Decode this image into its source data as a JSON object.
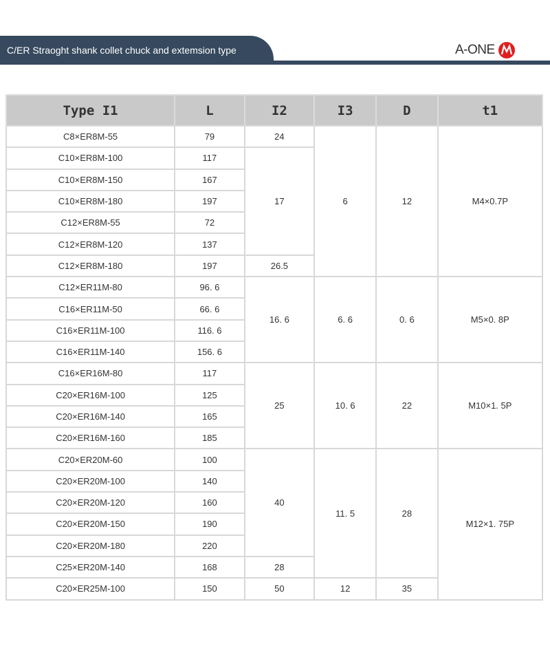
{
  "header": {
    "title": "C/ER Straoght shank collet chuck and extemsion type",
    "logo_text": "A-ONE",
    "brand_color": "#e02020",
    "band_color": "#36495e"
  },
  "columns": [
    "Type I1",
    "L",
    "I2",
    "I3",
    "D",
    "t1"
  ],
  "groups": [
    {
      "rows": [
        [
          "C8×ER8M-55",
          "79"
        ],
        [
          "C10×ER8M-100",
          "117"
        ],
        [
          "C10×ER8M-150",
          "167"
        ],
        [
          "C10×ER8M-180",
          "197"
        ],
        [
          "C12×ER8M-55",
          "72"
        ],
        [
          "C12×ER8M-120",
          "137"
        ],
        [
          "C12×ER8M-180",
          "197"
        ]
      ],
      "I2": [
        [
          "24",
          1
        ],
        [
          "17",
          5
        ],
        [
          "26.5",
          1
        ]
      ],
      "I3": [
        [
          "6",
          7
        ]
      ],
      "D": [
        [
          "12",
          7
        ]
      ],
      "t1": [
        [
          "M4×0.7P",
          7
        ]
      ]
    },
    {
      "rows": [
        [
          "C12×ER11M-80",
          "96. 6"
        ],
        [
          "C16×ER11M-50",
          "66. 6"
        ],
        [
          "C16×ER11M-100",
          "116. 6"
        ],
        [
          "C16×ER11M-140",
          "156. 6"
        ]
      ],
      "I2": [
        [
          "16. 6",
          4
        ]
      ],
      "I3": [
        [
          "6. 6",
          4
        ]
      ],
      "D": [
        [
          "0. 6",
          4
        ]
      ],
      "t1": [
        [
          "M5×0. 8P",
          4
        ]
      ]
    },
    {
      "rows": [
        [
          "C16×ER16M-80",
          "117"
        ],
        [
          "C20×ER16M-100",
          "125"
        ],
        [
          "C20×ER16M-140",
          "165"
        ],
        [
          "C20×ER16M-160",
          "185"
        ]
      ],
      "I2": [
        [
          "25",
          4
        ]
      ],
      "I3": [
        [
          "10. 6",
          4
        ]
      ],
      "D": [
        [
          "22",
          4
        ]
      ],
      "t1": [
        [
          "M10×1. 5P",
          4
        ]
      ]
    },
    {
      "rows": [
        [
          "C20×ER20M-60",
          "100"
        ],
        [
          "C20×ER20M-100",
          "140"
        ],
        [
          "C20×ER20M-120",
          "160"
        ],
        [
          "C20×ER20M-150",
          "190"
        ],
        [
          "C20×ER20M-180",
          "220"
        ],
        [
          "C25×ER20M-140",
          "168"
        ],
        [
          "C20×ER25M-100",
          "150"
        ]
      ],
      "I2": [
        [
          "40",
          5
        ],
        [
          "28",
          1
        ],
        [
          "50",
          1
        ]
      ],
      "I3": [
        [
          "11. 5",
          6
        ],
        [
          "12",
          1
        ]
      ],
      "D": [
        [
          "28",
          6
        ],
        [
          "35",
          1
        ]
      ],
      "t1": [
        [
          "M12×1. 75P",
          7
        ]
      ]
    }
  ]
}
